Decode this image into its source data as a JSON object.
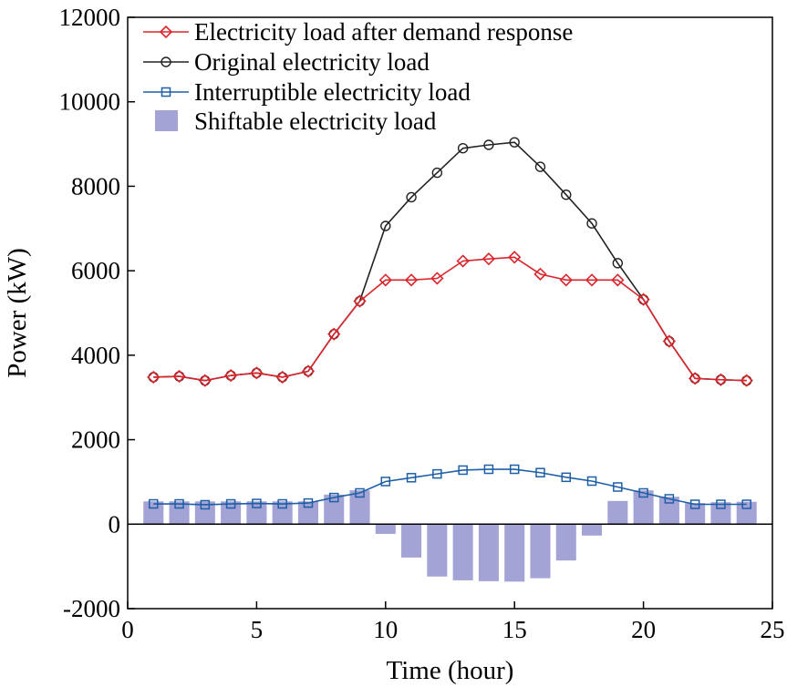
{
  "chart_data": {
    "type": "line",
    "title": "",
    "xlabel": "Time (hour)",
    "ylabel": "Power (kW)",
    "xlim": [
      0,
      25
    ],
    "ylim": [
      -2000,
      12000
    ],
    "xticks": [
      0,
      5,
      10,
      15,
      20,
      25
    ],
    "yticks": [
      -2000,
      0,
      2000,
      4000,
      6000,
      8000,
      10000,
      12000
    ],
    "grid": false,
    "legend_position": "top-left",
    "x": [
      1,
      2,
      3,
      4,
      5,
      6,
      7,
      8,
      9,
      10,
      11,
      12,
      13,
      14,
      15,
      16,
      17,
      18,
      19,
      20,
      21,
      22,
      23,
      24
    ],
    "series": [
      {
        "name": "Electricity load after demand response",
        "kind": "line",
        "marker": "diamond",
        "color": "#d9262c",
        "values": [
          3480,
          3500,
          3400,
          3520,
          3580,
          3480,
          3620,
          4500,
          5280,
          5780,
          5780,
          5820,
          6230,
          6280,
          6320,
          5920,
          5780,
          5780,
          5780,
          5320,
          4330,
          3450,
          3420,
          3400
        ]
      },
      {
        "name": "Original electricity load",
        "kind": "line",
        "marker": "circle",
        "color": "#222222",
        "values": [
          3480,
          3500,
          3400,
          3520,
          3580,
          3480,
          3620,
          4500,
          5280,
          7060,
          7740,
          8320,
          8900,
          8980,
          9040,
          8460,
          7800,
          7120,
          6180,
          5320,
          4330,
          3450,
          3420,
          3400
        ]
      },
      {
        "name": "Interruptible electricity load",
        "kind": "line",
        "marker": "square",
        "color": "#1f5fa6",
        "values": [
          480,
          480,
          460,
          480,
          490,
          480,
          500,
          630,
          740,
          1010,
          1100,
          1190,
          1280,
          1300,
          1300,
          1220,
          1110,
          1020,
          880,
          740,
          600,
          470,
          470,
          470
        ]
      },
      {
        "name": "Shiftable electricity load",
        "kind": "bar",
        "color": "#a4a3d6",
        "values": [
          540,
          540,
          540,
          540,
          540,
          540,
          540,
          700,
          800,
          -230,
          -790,
          -1240,
          -1330,
          -1350,
          -1360,
          -1280,
          -860,
          -270,
          550,
          800,
          650,
          500,
          520,
          530
        ]
      }
    ]
  }
}
